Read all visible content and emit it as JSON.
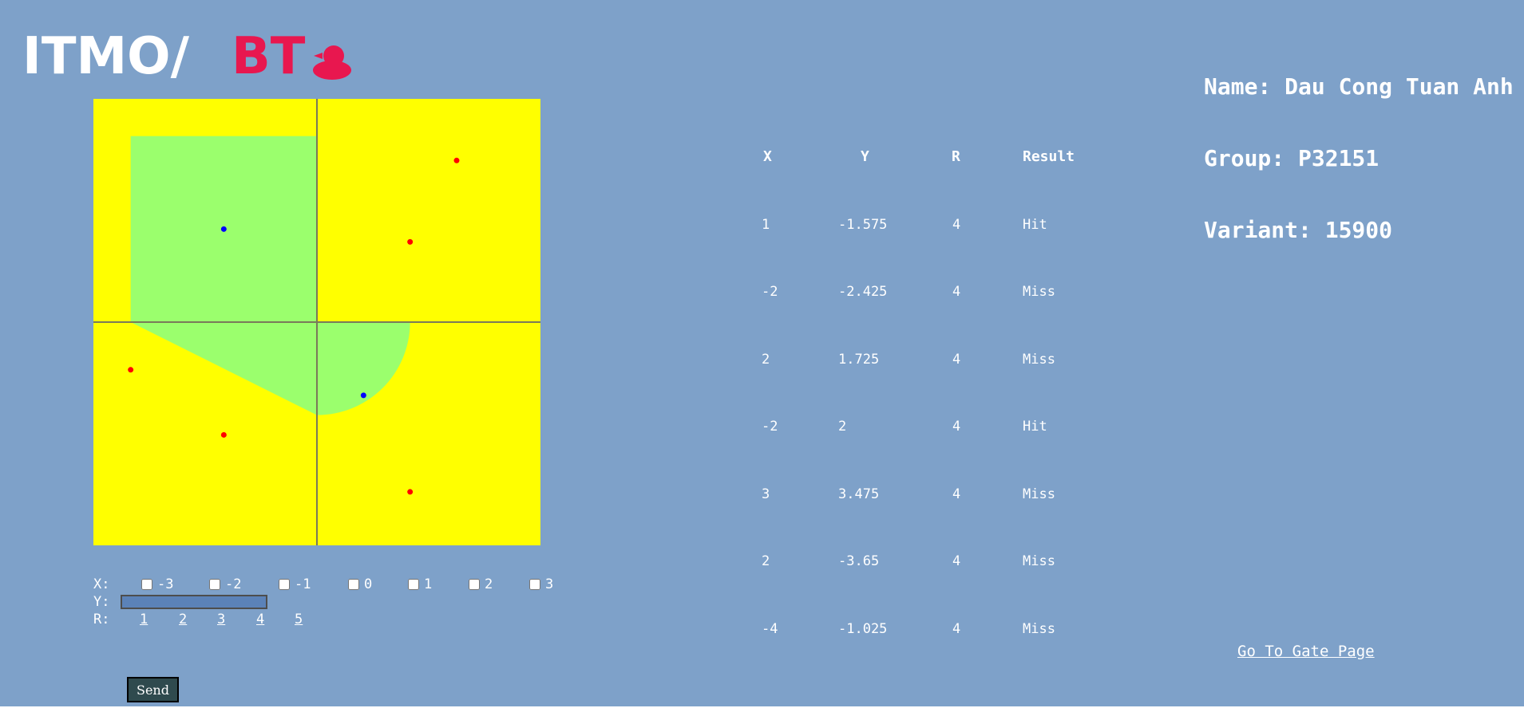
{
  "logo": {
    "left_text": "ITMO/",
    "right_text": "BT",
    "left_color": "#ffffff",
    "right_color": "#e8174f",
    "icon": "duck-icon"
  },
  "student": {
    "name": "Name: Dau Cong Tuan Anh",
    "group": "Group: P32151",
    "variant": "Variant: 15900"
  },
  "graph": {
    "background_color": "#ffff00",
    "area_color": "#9bff6d",
    "axis_color": "#7a7a5a",
    "hit_color": "#0000ff",
    "miss_color": "#ff0000",
    "r": 4,
    "range": [
      -4.8,
      4.8
    ],
    "points": [
      {
        "x": 1,
        "y": -1.575,
        "hit": true
      },
      {
        "x": -2,
        "y": -2.425,
        "hit": false
      },
      {
        "x": 2,
        "y": 1.725,
        "hit": false
      },
      {
        "x": -2,
        "y": 2,
        "hit": true
      },
      {
        "x": 3,
        "y": 3.475,
        "hit": false
      },
      {
        "x": 2,
        "y": -3.65,
        "hit": false
      },
      {
        "x": -4,
        "y": -1.025,
        "hit": false
      }
    ]
  },
  "form": {
    "x_label": "X:",
    "y_label": "Y:",
    "r_label": "R:",
    "x_options": [
      "-3",
      "-2",
      "-1",
      "0",
      "1",
      "2",
      "3"
    ],
    "y_value": "",
    "r_options": [
      "1",
      "2",
      "3",
      "4",
      "5"
    ],
    "send_label": "Send"
  },
  "results": {
    "headers": [
      "X",
      "Y",
      "R",
      "Result"
    ],
    "rows": [
      [
        "1",
        "-1.575",
        "4",
        "Hit"
      ],
      [
        "-2",
        "-2.425",
        "4",
        "Miss"
      ],
      [
        "2",
        "1.725",
        "4",
        "Miss"
      ],
      [
        "-2",
        "2",
        "4",
        "Hit"
      ],
      [
        "3",
        "3.475",
        "4",
        "Miss"
      ],
      [
        "2",
        "-3.65",
        "4",
        "Miss"
      ],
      [
        "-4",
        "-1.025",
        "4",
        "Miss"
      ]
    ]
  },
  "gate_link": "Go To Gate Page"
}
